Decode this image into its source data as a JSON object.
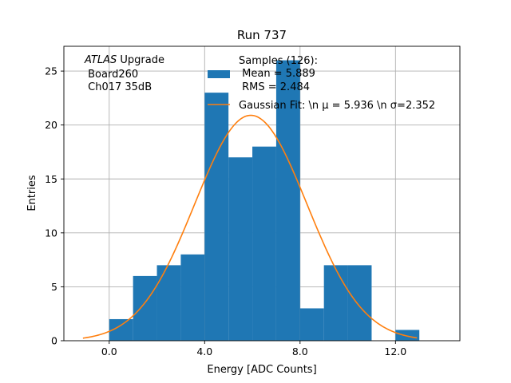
{
  "chart_data": {
    "type": "bar",
    "title": "Run 737",
    "xlabel": "Energy [ADC Counts]",
    "ylabel": "Entries",
    "xlim": [
      -1.9,
      14.7
    ],
    "ylim": [
      0,
      27.3
    ],
    "xticks": [
      0,
      4,
      8,
      12
    ],
    "xtick_labels": [
      "0.0",
      "4.0",
      "8.0",
      "12.0"
    ],
    "yticks": [
      0,
      5,
      10,
      15,
      20,
      25
    ],
    "ytick_labels": [
      "0",
      "5",
      "10",
      "15",
      "20",
      "25"
    ],
    "grid": true,
    "bin_edges": [
      0,
      1,
      2,
      3,
      4,
      5,
      6,
      7,
      8,
      9,
      10,
      11,
      12,
      13
    ],
    "counts": [
      2,
      6,
      7,
      8,
      23,
      17,
      18,
      26,
      3,
      7,
      7,
      0,
      1
    ],
    "histogram_color": "#1f77b4",
    "fit": {
      "mu": 5.936,
      "sigma": 2.352,
      "amplitude": 20.9,
      "x_range": [
        -1.1,
        12.9
      ],
      "color": "#ff7f0e"
    },
    "annotation": {
      "italic": "ATLAS",
      "rest": " Upgrade",
      "line2": " Board260",
      "line3": " Ch017 35dB"
    },
    "legend": {
      "location": "top-center",
      "hist_line1": "Samples (126):",
      "hist_line2": " Mean = 5.889",
      "hist_line3": " RMS = 2.484",
      "fit_label": "Gaussian Fit: \\n μ = 5.936 \\n σ=2.352"
    }
  }
}
